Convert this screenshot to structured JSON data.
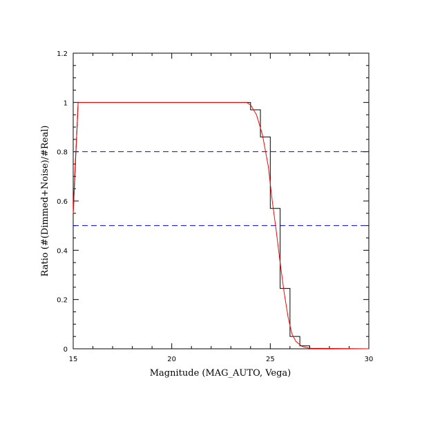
{
  "chart_data": {
    "type": "line",
    "title": "",
    "xlabel": "Magnitude (MAG_AUTO, Vega)",
    "ylabel": "Ratio (#(Dimmed+Noise)/#Real)",
    "xlim": [
      15,
      30
    ],
    "ylim": [
      0,
      1.2
    ],
    "x_ticks": [
      15,
      20,
      25,
      30
    ],
    "x_tick_labels": [
      "15",
      "20",
      "25",
      "30"
    ],
    "y_ticks": [
      0,
      0.2,
      0.4,
      0.6,
      0.8,
      1.0,
      1.2
    ],
    "y_tick_labels": [
      "0",
      "0.2",
      "0.4",
      "0.6",
      "0.8",
      "1",
      "1.2"
    ],
    "grid": false,
    "series": [
      {
        "kind": "histogram-step",
        "color": "#000000",
        "points": [
          [
            15.0,
            0.55
          ],
          [
            15.25,
            1.0
          ],
          [
            24.0,
            1.0
          ],
          [
            24.0,
            0.97
          ],
          [
            24.5,
            0.97
          ],
          [
            24.5,
            0.86
          ],
          [
            25.0,
            0.86
          ],
          [
            25.0,
            0.57
          ],
          [
            25.5,
            0.57
          ],
          [
            25.5,
            0.245
          ],
          [
            26.0,
            0.245
          ],
          [
            26.0,
            0.05
          ],
          [
            26.5,
            0.05
          ],
          [
            26.5,
            0.012
          ],
          [
            27.0,
            0.012
          ],
          [
            27.0,
            0.0
          ],
          [
            30.0,
            0.0
          ]
        ]
      },
      {
        "kind": "fit-curve",
        "color": "#ff0000",
        "points": [
          [
            15.0,
            0.55
          ],
          [
            15.1,
            0.75
          ],
          [
            15.2,
            0.9
          ],
          [
            15.25,
            1.0
          ],
          [
            23.8,
            1.0
          ],
          [
            24.0,
            0.99
          ],
          [
            24.3,
            0.95
          ],
          [
            24.6,
            0.87
          ],
          [
            24.9,
            0.74
          ],
          [
            25.1,
            0.6
          ],
          [
            25.3,
            0.48
          ],
          [
            25.5,
            0.35
          ],
          [
            25.7,
            0.23
          ],
          [
            25.9,
            0.13
          ],
          [
            26.1,
            0.06
          ],
          [
            26.3,
            0.03
          ],
          [
            26.6,
            0.01
          ],
          [
            27.0,
            0.002
          ],
          [
            30.0,
            0.0
          ]
        ]
      }
    ],
    "reference_lines": [
      {
        "y": 0.8,
        "color": "#0000ff",
        "style": "dashed"
      },
      {
        "y": 0.5,
        "color": "#0000ff",
        "style": "dashed"
      }
    ]
  }
}
